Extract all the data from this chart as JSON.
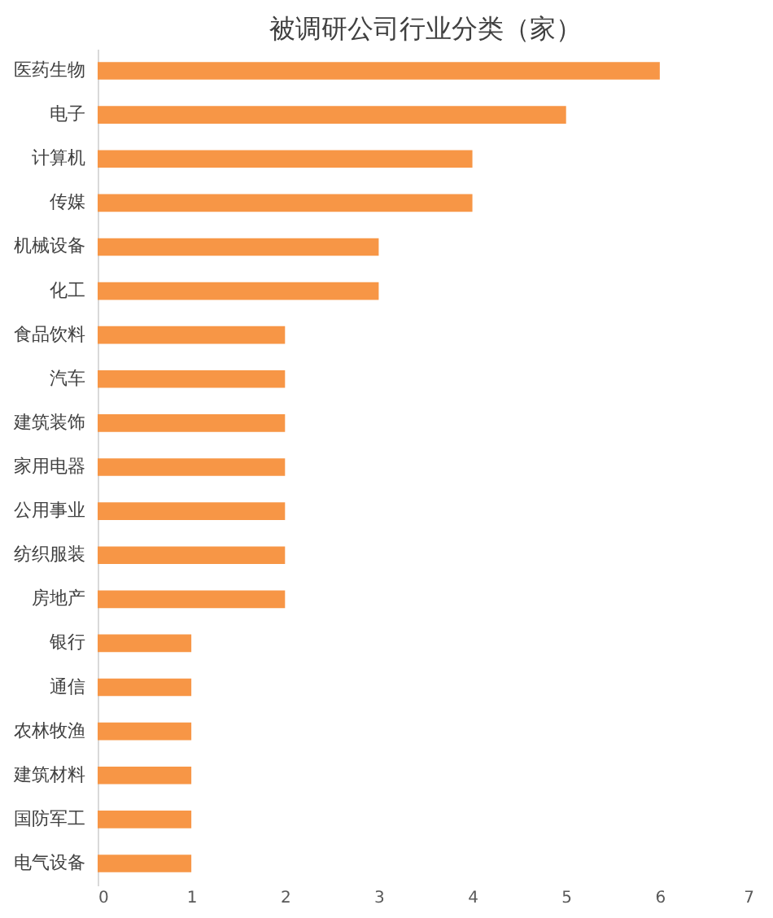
{
  "chart_data": {
    "type": "bar",
    "orientation": "horizontal",
    "title": "被调研公司行业分类（家）",
    "categories": [
      "医药生物",
      "电子",
      "计算机",
      "传媒",
      "机械设备",
      "化工",
      "食品饮料",
      "汽车",
      "建筑装饰",
      "家用电器",
      "公用事业",
      "纺织服装",
      "房地产",
      "银行",
      "通信",
      "农林牧渔",
      "建筑材料",
      "国防军工",
      "电气设备"
    ],
    "values": [
      6,
      5,
      4,
      4,
      3,
      3,
      2,
      2,
      2,
      2,
      2,
      2,
      2,
      1,
      1,
      1,
      1,
      1,
      1
    ],
    "color": "#f79646",
    "xlim": [
      0,
      7
    ],
    "xticks": [
      0,
      1,
      2,
      3,
      4,
      5,
      6,
      7
    ],
    "grid": false
  }
}
